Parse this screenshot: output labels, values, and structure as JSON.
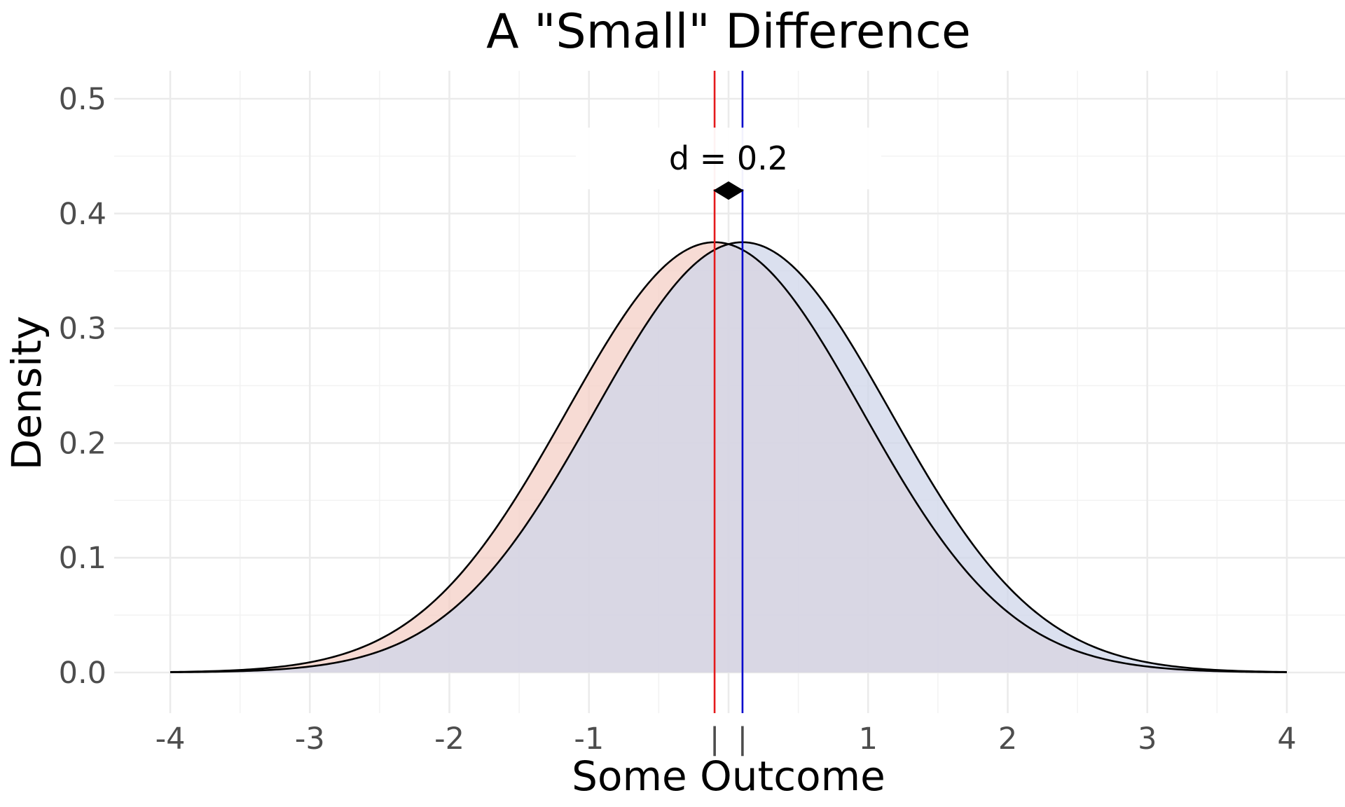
{
  "chart_data": {
    "type": "area",
    "title": "A \"Small\" Difference",
    "xlabel": "Some Outcome",
    "ylabel": "Density",
    "xlim": [
      -4,
      4
    ],
    "ylim": [
      0,
      0.5
    ],
    "x_ticks": [
      -4,
      -3,
      -2,
      -1,
      1,
      2,
      3,
      4
    ],
    "x_tick_labels": [
      "-4",
      "-3",
      "-2",
      "-1",
      "1",
      "2",
      "3",
      "4"
    ],
    "mean_ticks": [
      -0.1,
      0.1
    ],
    "mean_tick_labels": [
      "|",
      "|"
    ],
    "y_ticks": [
      0.0,
      0.1,
      0.2,
      0.3,
      0.4,
      0.5
    ],
    "y_tick_labels": [
      "0.0",
      "0.1",
      "0.2",
      "0.3",
      "0.4",
      "0.5"
    ],
    "grid": true,
    "legend": "none",
    "series": [
      {
        "distribution": "normal",
        "mean": -0.1,
        "sd": 1.06,
        "peak_density": 0.375,
        "fill_color": "#f4cfc6",
        "mean_line_color": "#e41a1c"
      },
      {
        "distribution": "normal",
        "mean": 0.1,
        "sd": 1.06,
        "peak_density": 0.375,
        "fill_color": "#cfd6ea",
        "mean_line_color": "#0000cc"
      }
    ],
    "annotation": {
      "text": "d = 0.2",
      "arrow_from": -0.1,
      "arrow_to": 0.1,
      "arrow_y": 0.42,
      "label_y": 0.448
    }
  }
}
